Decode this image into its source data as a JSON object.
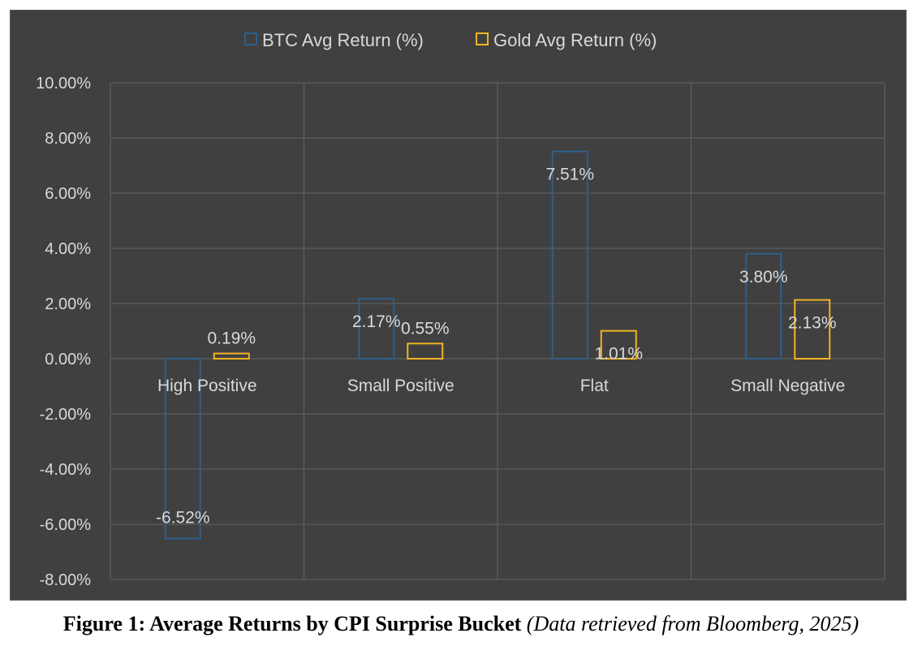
{
  "chart_data": {
    "type": "bar",
    "categories": [
      "High Positive",
      "Small Positive",
      "Flat",
      "Small Negative"
    ],
    "series": [
      {
        "name": "BTC Avg Return (%)",
        "values": [
          -6.52,
          2.17,
          7.51,
          3.8
        ],
        "labels": [
          "-6.52%",
          "2.17%",
          "7.51%",
          "3.80%"
        ],
        "color": "#2e5f8a"
      },
      {
        "name": "Gold Avg Return (%)",
        "values": [
          0.19,
          0.55,
          1.01,
          2.13
        ],
        "labels": [
          "0.19%",
          "0.55%",
          "1.01%",
          "2.13%"
        ],
        "color": "#f0b323"
      }
    ],
    "yticks": [
      10,
      8,
      6,
      4,
      2,
      0,
      -2,
      -4,
      -6,
      -8
    ],
    "ytick_labels": [
      "10.00%",
      "8.00%",
      "6.00%",
      "4.00%",
      "2.00%",
      "0.00%",
      "-2.00%",
      "-4.00%",
      "-6.00%",
      "-8.00%"
    ],
    "ylim": [
      -8,
      10
    ],
    "grid": true,
    "legend_position": "top-center",
    "background": "#404040",
    "gridline_color": "#5e5e5e",
    "text_color": "#d9d9d9"
  },
  "caption": {
    "bold": "Figure 1: Average Returns by CPI Surprise Bucket",
    "italic": "(Data retrieved from Bloomberg, 2025)"
  }
}
